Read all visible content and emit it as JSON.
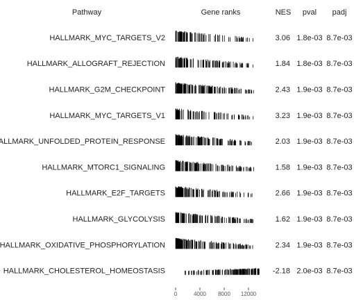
{
  "header": {
    "columns": [
      "Pathway",
      "Gene ranks",
      "NES",
      "pval",
      "padj"
    ]
  },
  "rows": [
    {
      "pathway": "HALLMARK_MYC_TARGETS_V2",
      "nes": 3.06,
      "pval": "1.8e-03",
      "padj": "8.7e-03"
    },
    {
      "pathway": "HALLMARK_ALLOGRAFT_REJECTION",
      "nes": 1.84,
      "pval": "1.8e-03",
      "padj": "8.7e-03"
    },
    {
      "pathway": "HALLMARK_G2M_CHECKPOINT",
      "nes": 2.43,
      "pval": "1.9e-03",
      "padj": "8.7e-03"
    },
    {
      "pathway": "HALLMARK_MYC_TARGETS_V1",
      "nes": 3.23,
      "pval": "1.9e-03",
      "padj": "8.7e-03"
    },
    {
      "pathway": "HALLMARK_UNFOLDED_PROTEIN_RESPONSE",
      "nes": 2.03,
      "pval": "1.9e-03",
      "padj": "8.7e-03"
    },
    {
      "pathway": "HALLMARK_MTORC1_SIGNALING",
      "nes": 1.58,
      "pval": "1.9e-03",
      "padj": "8.7e-03"
    },
    {
      "pathway": "HALLMARK_E2F_TARGETS",
      "nes": 2.66,
      "pval": "1.9e-03",
      "padj": "8.7e-03"
    },
    {
      "pathway": "HALLMARK_GLYCOLYSIS",
      "nes": 1.62,
      "pval": "1.9e-03",
      "padj": "8.7e-03"
    },
    {
      "pathway": "HALLMARK_OXIDATIVE_PHOSPHORYLATION",
      "nes": 2.34,
      "pval": "1.9e-03",
      "padj": "8.7e-03"
    },
    {
      "pathway": "HALLMARK_CHOLESTEROL_HOMEOSTASIS",
      "nes": -2.18,
      "pval": "2.0e-03",
      "padj": "8.7e-03"
    }
  ],
  "axis": {
    "xlim": [
      0,
      14000
    ],
    "xticks": [
      0,
      4000,
      8000,
      12000
    ]
  }
}
